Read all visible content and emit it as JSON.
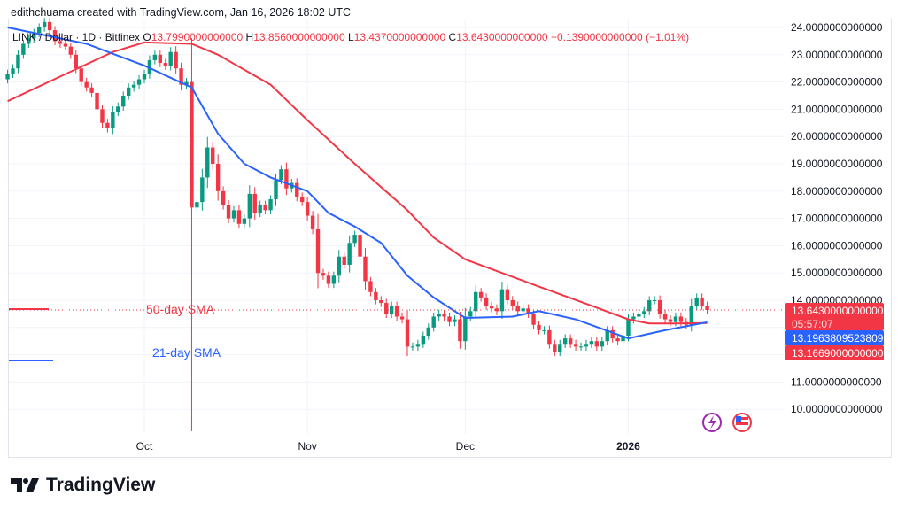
{
  "credit": "edithchuama created with TradingView.com, Jan 16, 2026 18:02 UTC",
  "legend": {
    "symbol": "LINK / Dollar · 1D · Bitfinex",
    "o_label": "O",
    "o": "13.7990000000000",
    "h_label": "H",
    "h": "13.8560000000000",
    "l_label": "L",
    "l": "13.4370000000000",
    "c_label": "C",
    "c": "13.6430000000000",
    "change": "−0.1390000000000 (−1.01%)"
  },
  "colors": {
    "up": "#089981",
    "down": "#f23645",
    "sma21": "#2962ff",
    "sma50": "#f23645"
  },
  "badges": {
    "last_price": "13.6430000000000",
    "countdown": "05:57:07",
    "sma21_value": "13.1963809523809",
    "sma50_value": "13.1669000000000"
  },
  "annotations": {
    "sma50_label": "50-day SMA",
    "sma21_label": "21-day SMA"
  },
  "logo_text": "TradingView",
  "icons": [
    "lightning-icon",
    "us-flag-icon"
  ],
  "chart_data": {
    "type": "candlestick",
    "start_date": "2025-09-05",
    "ylim": [
      9.2,
      24.2
    ],
    "yticks": [
      "24.0000000000000",
      "23.0000000000000",
      "22.0000000000000",
      "21.0000000000000",
      "20.0000000000000",
      "19.0000000000000",
      "18.0000000000000",
      "17.0000000000000",
      "16.0000000000000",
      "15.0000000000000",
      "14.0000000000000",
      "11.0000000000000",
      "10.0000000000000"
    ],
    "ytick_values": [
      24,
      23,
      22,
      21,
      20,
      19,
      18,
      17,
      16,
      15,
      14,
      11,
      10
    ],
    "xticks": [
      {
        "label": "Oct",
        "date": "2025-10-01"
      },
      {
        "label": "Nov",
        "date": "2025-11-01"
      },
      {
        "label": "Dec",
        "date": "2025-12-01"
      },
      {
        "label": "2026",
        "date": "2026-01-01"
      }
    ],
    "grid": true,
    "close": [
      22.3,
      22.5,
      23.0,
      23.4,
      23.6,
      23.8,
      24.0,
      24.2,
      23.9,
      23.5,
      23.4,
      23.3,
      23.0,
      22.5,
      22.0,
      21.8,
      21.6,
      21.0,
      20.5,
      20.3,
      20.9,
      21.1,
      21.5,
      21.8,
      21.9,
      22.1,
      22.3,
      22.8,
      23.0,
      22.7,
      22.6,
      23.1,
      22.5,
      21.9,
      22.0,
      17.4,
      17.6,
      18.5,
      19.6,
      19.0,
      18.0,
      17.5,
      17.0,
      17.3,
      16.8,
      17.0,
      17.9,
      17.2,
      17.5,
      17.3,
      17.7,
      18.4,
      18.8,
      18.1,
      18.3,
      17.8,
      17.6,
      17.1,
      16.6,
      15.0,
      14.9,
      14.6,
      14.9,
      15.6,
      15.3,
      16.1,
      16.4,
      15.6,
      14.7,
      14.3,
      14.0,
      13.9,
      13.5,
      13.8,
      13.4,
      13.3,
      12.3,
      12.3,
      12.4,
      12.7,
      13.0,
      13.4,
      13.5,
      13.4,
      13.2,
      13.3,
      12.5,
      13.4,
      13.6,
      14.3,
      14.1,
      13.8,
      13.7,
      13.6,
      14.4,
      14.0,
      13.8,
      13.6,
      13.7,
      13.5,
      13.1,
      12.9,
      12.9,
      12.4,
      12.1,
      12.4,
      12.6,
      12.4,
      12.3,
      12.3,
      12.4,
      12.5,
      12.3,
      12.5,
      12.9,
      12.6,
      12.5,
      12.7,
      13.3,
      13.4,
      13.5,
      13.6,
      14.0,
      14.0,
      13.5,
      13.3,
      13.2,
      13.4,
      13.2,
      13.1,
      13.8,
      14.1,
      13.799,
      13.643
    ],
    "notable_low": {
      "date": "2025-10-10",
      "value": 9.2
    },
    "series": [
      {
        "name": "50-day SMA",
        "points": [
          [
            "2025-09-05",
            21.3
          ],
          [
            "2025-09-15",
            22.2
          ],
          [
            "2025-09-25",
            23.1
          ],
          [
            "2025-10-01",
            23.45
          ],
          [
            "2025-10-10",
            23.4
          ],
          [
            "2025-10-15",
            23.0
          ],
          [
            "2025-10-25",
            21.9
          ],
          [
            "2025-11-01",
            20.6
          ],
          [
            "2025-11-10",
            19.0
          ],
          [
            "2025-11-20",
            17.3
          ],
          [
            "2025-11-25",
            16.3
          ],
          [
            "2025-12-01",
            15.5
          ],
          [
            "2025-12-08",
            15.0
          ],
          [
            "2025-12-15",
            14.5
          ],
          [
            "2025-12-25",
            13.8
          ],
          [
            "2026-01-01",
            13.3
          ],
          [
            "2026-01-05",
            13.15
          ],
          [
            "2026-01-10",
            13.15
          ],
          [
            "2026-01-16",
            13.167
          ]
        ]
      },
      {
        "name": "21-day SMA",
        "points": [
          [
            "2025-09-05",
            24.0
          ],
          [
            "2025-09-20",
            23.4
          ],
          [
            "2025-10-01",
            22.6
          ],
          [
            "2025-10-10",
            21.8
          ],
          [
            "2025-10-15",
            20.1
          ],
          [
            "2025-10-20",
            19.0
          ],
          [
            "2025-10-25",
            18.5
          ],
          [
            "2025-11-01",
            18.0
          ],
          [
            "2025-11-05",
            17.2
          ],
          [
            "2025-11-10",
            16.7
          ],
          [
            "2025-11-15",
            16.1
          ],
          [
            "2025-11-20",
            14.9
          ],
          [
            "2025-11-25",
            14.1
          ],
          [
            "2025-12-01",
            13.35
          ],
          [
            "2025-12-10",
            13.4
          ],
          [
            "2025-12-15",
            13.6
          ],
          [
            "2025-12-22",
            13.3
          ],
          [
            "2026-01-01",
            12.6
          ],
          [
            "2026-01-08",
            12.9
          ],
          [
            "2026-01-16",
            13.196
          ]
        ]
      }
    ]
  }
}
